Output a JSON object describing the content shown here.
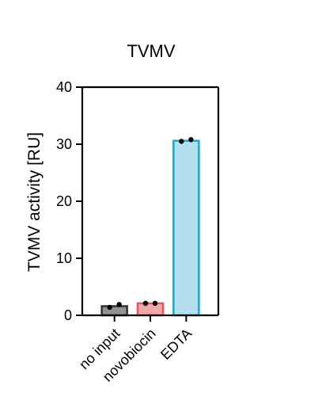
{
  "chart_data": {
    "type": "bar",
    "title": "TVMV",
    "xlabel": "",
    "ylabel": "TVMV activity [RU]",
    "ylim": [
      0,
      40
    ],
    "yticks": [
      0,
      10,
      20,
      30,
      40
    ],
    "ytick_labels": [
      "0",
      "10",
      "20",
      "30",
      "40"
    ],
    "grid": false,
    "categories": [
      "no input",
      "novobiocin",
      "EDTA"
    ],
    "values": [
      1.6,
      2.1,
      30.6
    ],
    "replicates": [
      [
        1.4,
        1.9
      ],
      [
        2.1,
        2.1
      ],
      [
        30.5,
        30.8
      ]
    ],
    "colors": {
      "fills": [
        "#939393",
        "#f0a9ab",
        "#b3e0ec"
      ],
      "strokes": [
        "#333333",
        "#e0565b",
        "#27a4c3"
      ],
      "points": "#000000",
      "axis": "#000000"
    }
  }
}
